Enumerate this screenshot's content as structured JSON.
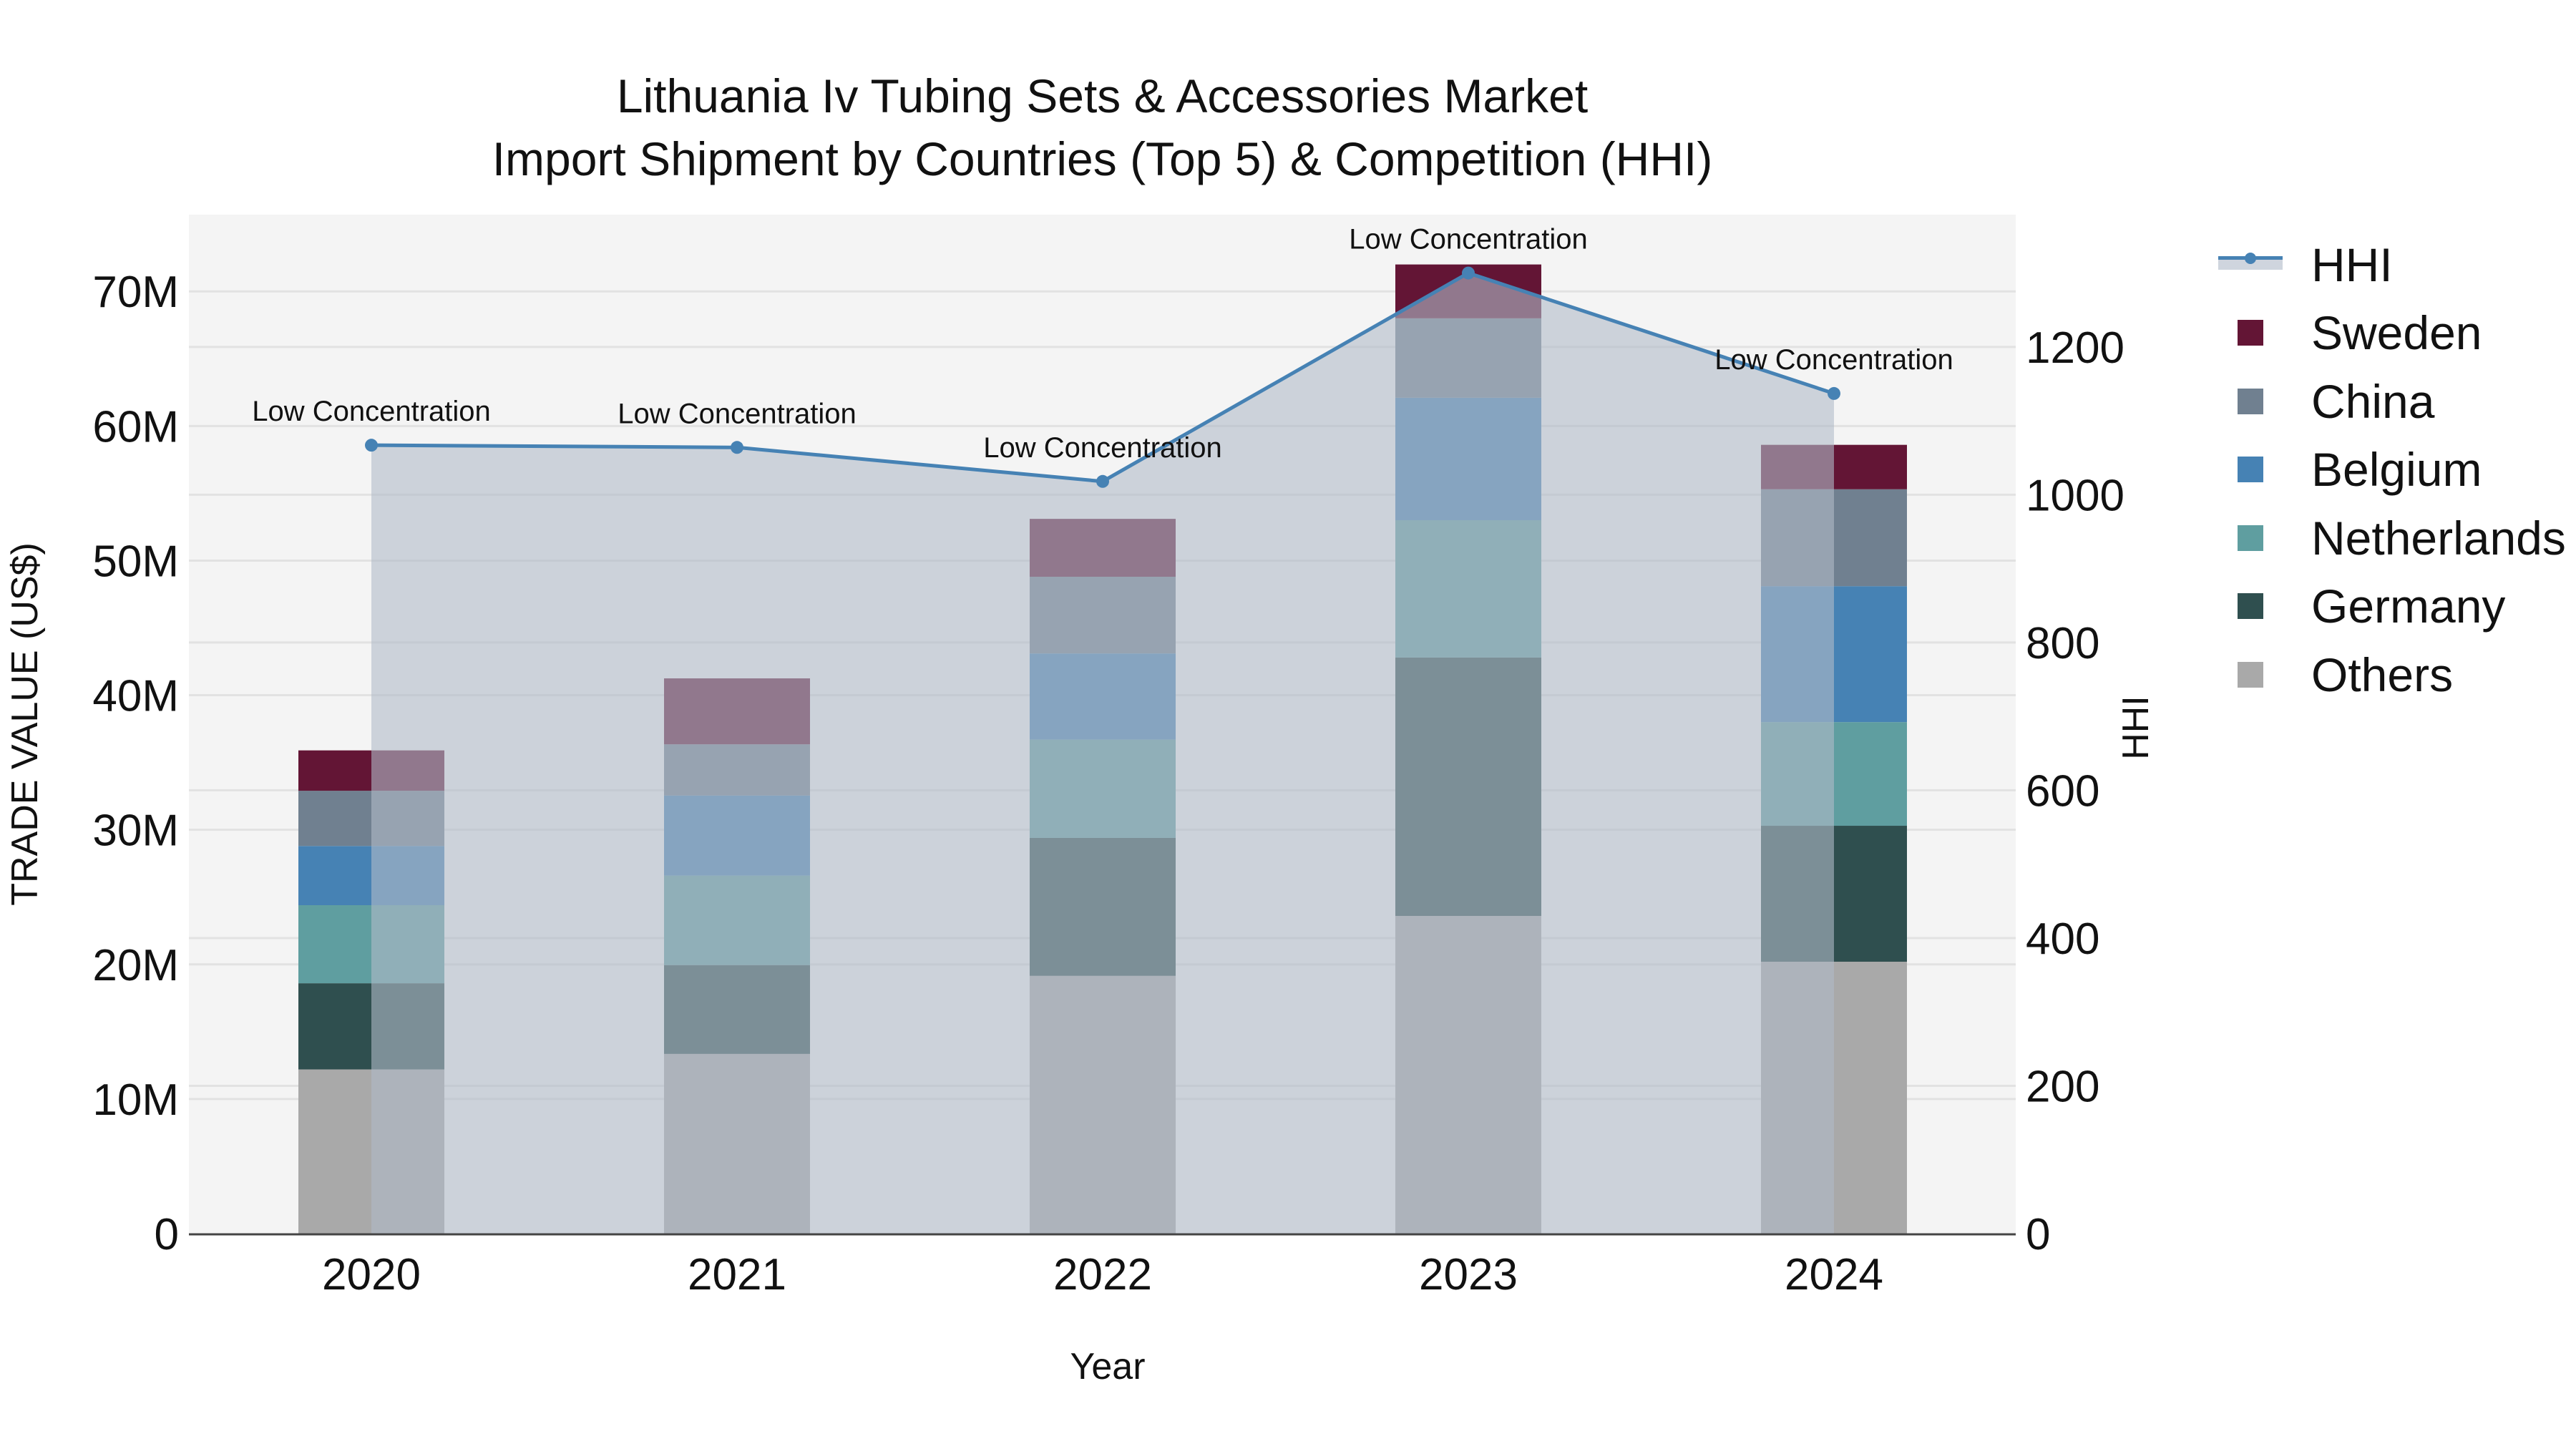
{
  "title": {
    "line1": "Lithuania Iv Tubing Sets & Accessories Market",
    "line2": "Import Shipment by Countries (Top 5) & Competition (HHI)"
  },
  "axes": {
    "y_left_title": "TRADE VALUE (US$)",
    "y_right_title": "HHI",
    "x_title": "Year",
    "y_left_ticks": [
      "0",
      "10M",
      "20M",
      "30M",
      "40M",
      "50M",
      "60M",
      "70M"
    ],
    "y_right_ticks": [
      "0",
      "200",
      "400",
      "600",
      "800",
      "1000",
      "1200"
    ]
  },
  "legend": {
    "items": [
      {
        "label": "HHI",
        "type": "line",
        "color": "#4682B4"
      },
      {
        "label": "Sweden",
        "type": "bar",
        "color": "#631535"
      },
      {
        "label": "China",
        "type": "bar",
        "color": "#708090"
      },
      {
        "label": "Belgium",
        "type": "bar",
        "color": "#4682B4"
      },
      {
        "label": "Netherlands",
        "type": "bar",
        "color": "#5F9EA0"
      },
      {
        "label": "Germany",
        "type": "bar",
        "color": "#2F4F4F"
      },
      {
        "label": "Others",
        "type": "bar",
        "color": "#A9A9A9"
      }
    ]
  },
  "colors": {
    "plot_bg": "#F4F4F4",
    "grid": "#E2E2E2",
    "hhi_line": "#4682B4",
    "hhi_fill": "rgba(176,186,200,0.6)",
    "axis_line": "#444444"
  },
  "chart_data": {
    "type": "bar",
    "stacked": true,
    "title": "Lithuania Iv Tubing Sets & Accessories Market Import Shipment by Countries (Top 5) & Competition (HHI)",
    "xlabel": "Year",
    "ylabel": "TRADE VALUE (US$)",
    "y2label": "HHI",
    "categories": [
      "2020",
      "2021",
      "2022",
      "2023",
      "2024"
    ],
    "ylim": [
      0,
      75700000
    ],
    "y2lim": [
      0,
      1379
    ],
    "grid": true,
    "legend_position": "right",
    "series": [
      {
        "name": "Others",
        "color": "#A9A9A9",
        "values": [
          12200000,
          13350000,
          19150000,
          23600000,
          20200000
        ]
      },
      {
        "name": "Germany",
        "color": "#2F4F4F",
        "values": [
          6400000,
          6600000,
          10250000,
          19200000,
          10100000
        ]
      },
      {
        "name": "Netherlands",
        "color": "#5F9EA0",
        "values": [
          5800000,
          6650000,
          7300000,
          10200000,
          7700000
        ]
      },
      {
        "name": "Belgium",
        "color": "#4682B4",
        "values": [
          4400000,
          5950000,
          6400000,
          9100000,
          10100000
        ]
      },
      {
        "name": "China",
        "color": "#708090",
        "values": [
          4100000,
          3800000,
          5700000,
          5900000,
          7200000
        ]
      },
      {
        "name": "Sweden",
        "color": "#631535",
        "values": [
          3000000,
          4900000,
          4300000,
          4000000,
          3300000
        ]
      }
    ],
    "line_series": {
      "name": "HHI",
      "axis": "right",
      "type": "area-line",
      "values": [
        1067,
        1064,
        1018,
        1300,
        1137
      ],
      "annotations": [
        "Low Concentration",
        "Low Concentration",
        "Low Concentration",
        "Low Concentration",
        "Low Concentration"
      ]
    }
  }
}
